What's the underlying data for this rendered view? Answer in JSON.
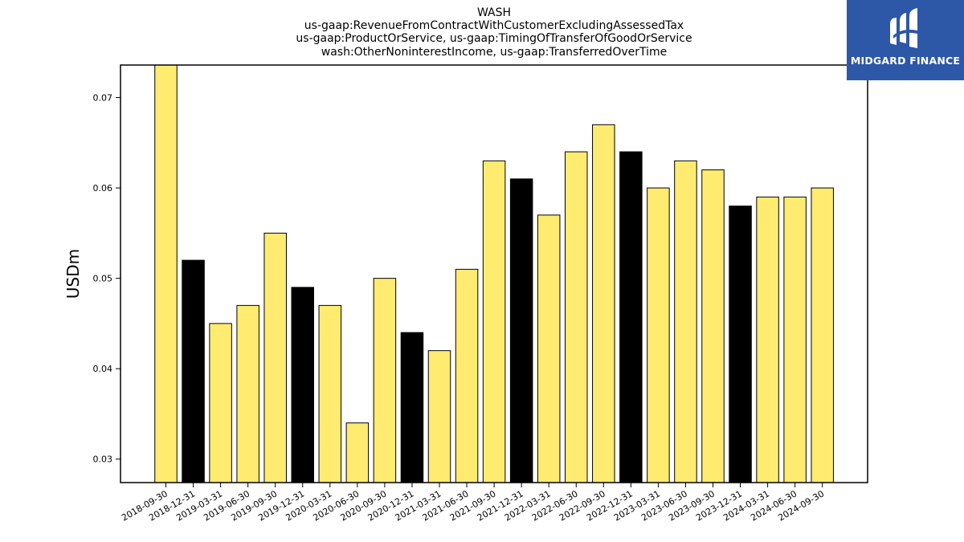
{
  "chart_data": {
    "type": "bar",
    "title_lines": [
      "WASH",
      "us-gaap:RevenueFromContractWithCustomerExcludingAssessedTax",
      "us-gaap:ProductOrService, us-gaap:TimingOfTransferOfGoodOrService",
      "wash:OtherNoninterestIncome, us-gaap:TransferredOverTime"
    ],
    "xlabel": "",
    "ylabel": "USDm",
    "ylim": [
      0.0274,
      0.0736
    ],
    "yticks": [
      0.03,
      0.04,
      0.05,
      0.06,
      0.07
    ],
    "ytick_labels": [
      "0.03",
      "0.04",
      "0.05",
      "0.06",
      "0.07"
    ],
    "grid": false,
    "categories": [
      "2018-09-30",
      "2018-12-31",
      "2019-03-31",
      "2019-06-30",
      "2019-09-30",
      "2019-12-31",
      "2020-03-31",
      "2020-06-30",
      "2020-09-30",
      "2020-12-31",
      "2021-03-31",
      "2021-06-30",
      "2021-09-30",
      "2021-12-31",
      "2022-03-31",
      "2022-06-30",
      "2022-09-30",
      "2022-12-31",
      "2023-03-31",
      "2023-06-30",
      "2023-09-30",
      "2023-12-31",
      "2024-03-31",
      "2024-06-30",
      "2024-09-30"
    ],
    "values": [
      0.074,
      0.052,
      0.045,
      0.047,
      0.055,
      0.049,
      0.047,
      0.034,
      0.05,
      0.044,
      0.042,
      0.051,
      0.063,
      0.061,
      0.057,
      0.064,
      0.067,
      0.064,
      0.06,
      0.063,
      0.062,
      0.058,
      0.059,
      0.059,
      0.06
    ],
    "bar_colors": [
      "#ffeb70",
      "#000000",
      "#ffeb70",
      "#ffeb70",
      "#ffeb70",
      "#000000",
      "#ffeb70",
      "#ffeb70",
      "#ffeb70",
      "#000000",
      "#ffeb70",
      "#ffeb70",
      "#ffeb70",
      "#000000",
      "#ffeb70",
      "#ffeb70",
      "#ffeb70",
      "#000000",
      "#ffeb70",
      "#ffeb70",
      "#ffeb70",
      "#000000",
      "#ffeb70",
      "#ffeb70",
      "#ffeb70"
    ],
    "colors": {
      "quarter_bar": "#ffeb70",
      "year_end_bar": "#000000",
      "edge": "#000000"
    }
  },
  "logo": {
    "text": "MIDGARD FINANCE",
    "background": "#2d58a7",
    "icon": "midgard-logo-icon"
  }
}
